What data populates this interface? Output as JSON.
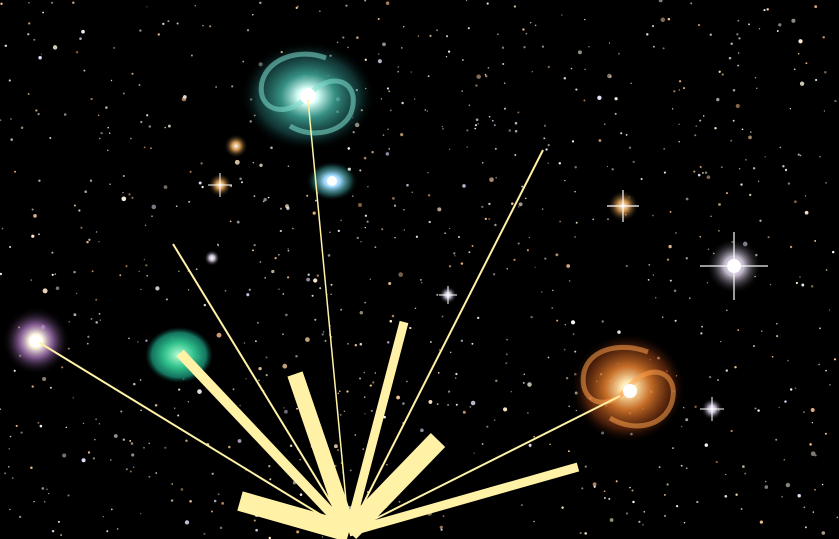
{
  "scene": {
    "background_color": "#000000",
    "ray_color": "#fff2a6",
    "objects": [
      {
        "name": "whirlpool-galaxy",
        "kind": "spiral-galaxy",
        "palette": "cyan-teal"
      },
      {
        "name": "companion-galaxy",
        "kind": "small-galaxy",
        "palette": "blue-white"
      },
      {
        "name": "orange-spiral-galaxy",
        "kind": "spiral-galaxy",
        "palette": "orange-gold"
      },
      {
        "name": "planetary-nebula",
        "kind": "nebula",
        "palette": "teal-green"
      },
      {
        "name": "globular-cluster",
        "kind": "star-cluster",
        "palette": "white-violet"
      },
      {
        "name": "bright-white-star",
        "kind": "star",
        "palette": "white"
      },
      {
        "name": "orange-stars",
        "kind": "star",
        "palette": "orange"
      }
    ]
  }
}
